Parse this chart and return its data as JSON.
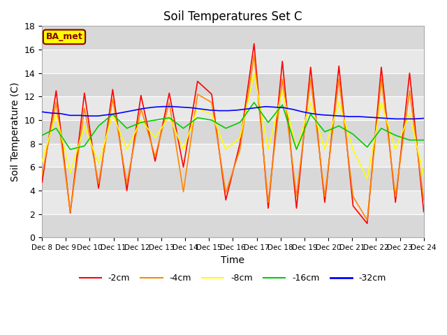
{
  "title": "Soil Temperatures Set C",
  "xlabel": "Time",
  "ylabel": "Soil Temperature (C)",
  "ylim": [
    0,
    18
  ],
  "xtick_labels": [
    "Dec 8",
    "Dec 9",
    "Dec 10",
    "Dec 11",
    "Dec 12",
    "Dec 13",
    "Dec 14",
    "Dec 15",
    "Dec 16",
    "Dec 17",
    "Dec 18",
    "Dec 19",
    "Dec 20",
    "Dec 21",
    "Dec 22",
    "Dec 23",
    "Dec 24"
  ],
  "background_color": "#ffffff",
  "plot_bg_color": "#e0e0e0",
  "band_colors": [
    "#d8d8d8",
    "#e8e8e8"
  ],
  "annotation_text": "BA_met",
  "annotation_bg": "#ffff00",
  "annotation_border": "#8b0000",
  "colors": {
    "-2cm": "#ff0000",
    "-4cm": "#ff8800",
    "-8cm": "#ffff00",
    "-16cm": "#00cc00",
    "-32cm": "#0000ff"
  },
  "series": {
    "-2cm": [
      4.7,
      12.5,
      2.1,
      12.3,
      4.2,
      12.6,
      4.0,
      12.1,
      6.5,
      12.3,
      6.0,
      13.3,
      12.2,
      3.2,
      8.0,
      16.5,
      2.5,
      15.0,
      2.5,
      14.5,
      3.0,
      14.6,
      2.7,
      1.2,
      14.5,
      3.0,
      14.0,
      2.2
    ],
    "-4cm": [
      5.3,
      11.5,
      2.2,
      11.0,
      4.6,
      11.8,
      4.6,
      11.0,
      6.9,
      11.5,
      3.9,
      12.2,
      11.5,
      3.8,
      7.5,
      15.5,
      3.0,
      13.5,
      3.5,
      13.5,
      3.5,
      13.5,
      3.5,
      1.5,
      13.5,
      3.5,
      12.5,
      3.2
    ],
    "-8cm": [
      6.5,
      10.5,
      5.5,
      9.5,
      6.3,
      10.5,
      7.5,
      10.0,
      8.5,
      10.3,
      7.5,
      11.0,
      10.5,
      7.5,
      8.5,
      14.0,
      7.5,
      12.5,
      7.5,
      11.5,
      7.5,
      11.5,
      7.5,
      5.0,
      11.5,
      7.5,
      10.5,
      5.2
    ],
    "-16cm": [
      8.7,
      9.3,
      7.5,
      7.8,
      9.5,
      10.5,
      9.3,
      9.8,
      10.0,
      10.2,
      9.3,
      10.2,
      10.0,
      9.3,
      9.8,
      11.5,
      9.8,
      11.3,
      7.5,
      10.5,
      9.0,
      9.5,
      8.8,
      7.7,
      9.3,
      8.7,
      8.3,
      8.3
    ],
    "-32cm": [
      10.7,
      10.6,
      10.55,
      10.4,
      10.4,
      10.35,
      10.35,
      10.45,
      10.55,
      10.7,
      10.85,
      11.0,
      11.1,
      11.15,
      11.15,
      11.1,
      11.05,
      10.95,
      10.85,
      10.8,
      10.8,
      10.85,
      10.95,
      11.05,
      11.15,
      11.1,
      11.05,
      10.9,
      10.7,
      10.55,
      10.45,
      10.4,
      10.35,
      10.3,
      10.3,
      10.25,
      10.2,
      10.15,
      10.1,
      10.1,
      10.1,
      10.15
    ]
  }
}
